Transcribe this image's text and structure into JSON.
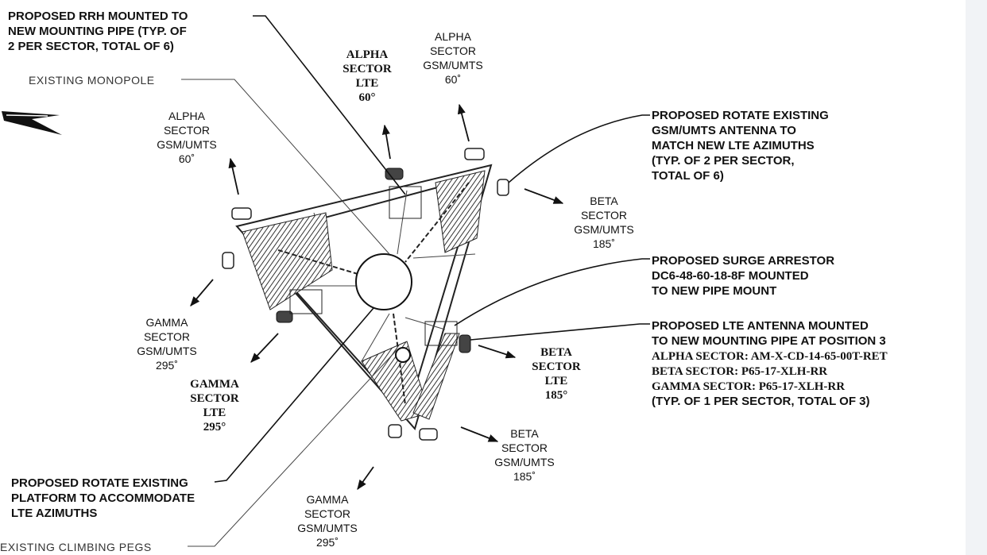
{
  "callouts": [
    {
      "lines": [
        "PROPOSED RRH MOUNTED TO",
        "NEW MOUNTING PIPE (TYP. OF",
        "2 PER SECTOR, TOTAL OF 6)"
      ]
    },
    {
      "lines": [
        "EXISTING MONOPOLE"
      ]
    },
    {
      "lines": [
        "PROPOSED ROTATE EXISTING",
        "PLATFORM TO ACCOMMODATE",
        "LTE AZIMUTHS"
      ]
    },
    {
      "lines": [
        "EXISTING CLIMBING PEGS"
      ]
    },
    {
      "lines": [
        "PROPOSED ROTATE EXISTING",
        "GSM/UMTS ANTENNA TO",
        "MATCH NEW LTE AZIMUTHS",
        "(TYP. OF 2 PER SECTOR,",
        "TOTAL OF 6)"
      ]
    },
    {
      "lines": [
        "PROPOSED SURGE ARRESTOR",
        "DC6-48-60-18-8F MOUNTED",
        "TO NEW PIPE MOUNT"
      ]
    },
    {
      "lines": [
        "PROPOSED LTE ANTENNA MOUNTED",
        "TO NEW MOUNTING PIPE AT POSITION 3",
        "ALPHA SECTOR: AM-X-CD-14-65-00T-RET",
        "BETA SECTOR: P65-17-XLH-RR",
        "GAMMA SECTOR: P65-17-XLH-RR",
        "(TYP. OF 1 PER SECTOR, TOTAL OF 3)"
      ]
    }
  ],
  "sectors": [
    {
      "lines": [
        "ALPHA",
        "SECTOR",
        "LTE",
        "60°"
      ]
    },
    {
      "lines": [
        "ALPHA",
        "SECTOR",
        "GSM/UMTS",
        "60˚"
      ]
    },
    {
      "lines": [
        "ALPHA",
        "SECTOR",
        "GSM/UMTS",
        "60˚"
      ]
    },
    {
      "lines": [
        "BETA",
        "SECTOR",
        "GSM/UMTS",
        "185˚"
      ]
    },
    {
      "lines": [
        "BETA",
        "SECTOR",
        "LTE",
        "185°"
      ]
    },
    {
      "lines": [
        "BETA",
        "SECTOR",
        "GSM/UMTS",
        "185˚"
      ]
    },
    {
      "lines": [
        "GAMMA",
        "SECTOR",
        "GSM/UMTS",
        "295˚"
      ]
    },
    {
      "lines": [
        "GAMMA",
        "SECTOR",
        "LTE",
        "295°"
      ]
    },
    {
      "lines": [
        "GAMMA",
        "SECTOR",
        "GSM/UMTS",
        "295˚"
      ]
    }
  ]
}
